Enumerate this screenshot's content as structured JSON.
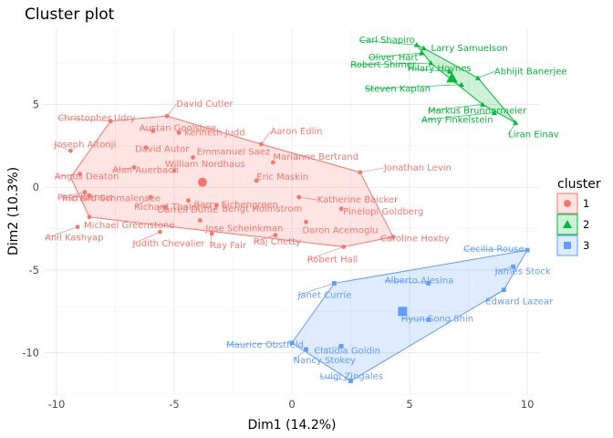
{
  "chart_data": {
    "type": "scatter",
    "title": "Cluster plot",
    "xlabel": "Dim1 (14.2%)",
    "ylabel": "Dim2 (10.3%)",
    "xlim": [
      -10.5,
      10.5
    ],
    "ylim": [
      -12.5,
      9.6
    ],
    "xticks": [
      -10,
      -5,
      0,
      5,
      10
    ],
    "yticks": [
      -10,
      -5,
      0,
      5
    ],
    "grid": true,
    "legend_title": "cluster",
    "legend_position": "right",
    "clusters": [
      {
        "name": "1",
        "color": "#F8766D",
        "shape": "circle",
        "center": [
          -3.8,
          0.3
        ],
        "hull": [
          [
            -7.7,
            4.0
          ],
          [
            -5.3,
            4.3
          ],
          [
            -1.3,
            2.6
          ],
          [
            2.9,
            0.9
          ],
          [
            4.3,
            -3.0
          ],
          [
            2.2,
            -3.6
          ],
          [
            -8.6,
            -1.8
          ],
          [
            -9.4,
            0.6
          ]
        ],
        "points": [
          {
            "label": "Christopher Udry",
            "x": -7.7,
            "y": 4.0
          },
          {
            "label": "David Cutler",
            "x": -5.3,
            "y": 4.3
          },
          {
            "label": "Austan Goolsbee",
            "x": -5.9,
            "y": 3.4
          },
          {
            "label": "Kenneth Judd",
            "x": -4.8,
            "y": 3.3
          },
          {
            "label": "Joseph Altonji",
            "x": -9.4,
            "y": 2.2
          },
          {
            "label": "David Autor",
            "x": -6.2,
            "y": 2.4
          },
          {
            "label": "Aaron Edlin",
            "x": -1.3,
            "y": 2.6
          },
          {
            "label": "Emmanuel Saez",
            "x": -4.2,
            "y": 1.8
          },
          {
            "label": "Marianne Bertrand",
            "x": -0.8,
            "y": 1.5
          },
          {
            "label": "Alan Auerbach",
            "x": -6.7,
            "y": 1.2
          },
          {
            "label": "William Nordhaus",
            "x": -5.0,
            "y": 1.0
          },
          {
            "label": "Angus Deaton",
            "x": -9.0,
            "y": 0.8
          },
          {
            "label": "Jonathan Levin",
            "x": 2.9,
            "y": 0.9
          },
          {
            "label": "Eric Maskin",
            "x": -1.5,
            "y": 0.4
          },
          {
            "label": "Richard Schmalensee",
            "x": -8.6,
            "y": -0.5
          },
          {
            "label": "Richard Thaler",
            "x": -6.0,
            "y": -0.6
          },
          {
            "label": "Barry Eichengreen",
            "x": -4.4,
            "y": -0.8
          },
          {
            "label": "Katherine Baicker",
            "x": 0.3,
            "y": -0.6
          },
          {
            "label": "Pete Klenow",
            "x": -8.8,
            "y": -0.3
          },
          {
            "label": "Darrell Duffie",
            "x": -5.4,
            "y": -1.2
          },
          {
            "label": "Bengt Holmstrom",
            "x": -3.2,
            "y": -1.1
          },
          {
            "label": "Pinelopi Goldberg",
            "x": 2.1,
            "y": -1.3
          },
          {
            "label": "Michael Greenstone",
            "x": -8.6,
            "y": -1.8
          },
          {
            "label": "Jose Scheinkman",
            "x": -3.9,
            "y": -2.0
          },
          {
            "label": "Daron Acemoglu",
            "x": 0.6,
            "y": -2.1
          },
          {
            "label": "Anil Kashyap",
            "x": -9.1,
            "y": -2.4
          },
          {
            "label": "Caroline Hoxby",
            "x": 4.3,
            "y": -3.0
          },
          {
            "label": "Judith Chevalier",
            "x": -5.6,
            "y": -2.7
          },
          {
            "label": "Ray Fair",
            "x": -3.4,
            "y": -2.8
          },
          {
            "label": "Raj Chetty",
            "x": -0.7,
            "y": -2.9
          },
          {
            "label": "Robert Hall",
            "x": 2.2,
            "y": -3.6
          }
        ]
      },
      {
        "name": "2",
        "color": "#00BA38",
        "shape": "triangle",
        "center": [
          6.8,
          6.6
        ],
        "hull": [
          [
            5.3,
            8.6
          ],
          [
            5.6,
            8.4
          ],
          [
            7.9,
            6.6
          ],
          [
            9.5,
            3.9
          ],
          [
            8.1,
            5.0
          ],
          [
            5.9,
            7.5
          ]
        ],
        "points": [
          {
            "label": "Carl Shapiro",
            "x": 5.3,
            "y": 8.6
          },
          {
            "label": "Larry Samuelson",
            "x": 5.6,
            "y": 8.4
          },
          {
            "label": "Oliver Hart",
            "x": 5.5,
            "y": 8.1
          },
          {
            "label": "Abhijit Banerjee",
            "x": 7.9,
            "y": 6.6
          },
          {
            "label": "Robert Shimer",
            "x": 5.9,
            "y": 7.5
          },
          {
            "label": "Hilary Hoynes",
            "x": 6.7,
            "y": 7.0
          },
          {
            "label": "Steven Kaplan",
            "x": 7.2,
            "y": 6.2
          },
          {
            "label": "Markus Brunnermeier",
            "x": 8.1,
            "y": 5.0
          },
          {
            "label": "Amy Finkelstein",
            "x": 8.6,
            "y": 4.5
          },
          {
            "label": "Liran Einav",
            "x": 9.5,
            "y": 3.9
          }
        ]
      },
      {
        "name": "3",
        "color": "#619CFF",
        "shape": "square",
        "center": [
          4.7,
          -7.5
        ],
        "hull": [
          [
            10.0,
            -3.8
          ],
          [
            9.0,
            -6.2
          ],
          [
            2.5,
            -11.7
          ],
          [
            0.0,
            -9.4
          ],
          [
            1.8,
            -5.8
          ]
        ],
        "points": [
          {
            "label": "Cecilia Rouse",
            "x": 10.0,
            "y": -3.8
          },
          {
            "label": "James Stock",
            "x": 9.4,
            "y": -4.8
          },
          {
            "label": "Alberto Alesina",
            "x": 5.8,
            "y": -5.8
          },
          {
            "label": "Edward Lazear",
            "x": 9.0,
            "y": -6.2
          },
          {
            "label": "Janet Currie",
            "x": 1.8,
            "y": -5.8
          },
          {
            "label": "Hyun Song Shin",
            "x": 5.8,
            "y": -8.0
          },
          {
            "label": "Maurice Obstfeld",
            "x": 0.0,
            "y": -9.4
          },
          {
            "label": "Claudia Goldin",
            "x": 2.1,
            "y": -9.6
          },
          {
            "label": "Nancy Stokey",
            "x": 0.6,
            "y": -9.8
          },
          {
            "label": "Luigi Zingales",
            "x": 2.5,
            "y": -11.7
          }
        ]
      }
    ]
  }
}
